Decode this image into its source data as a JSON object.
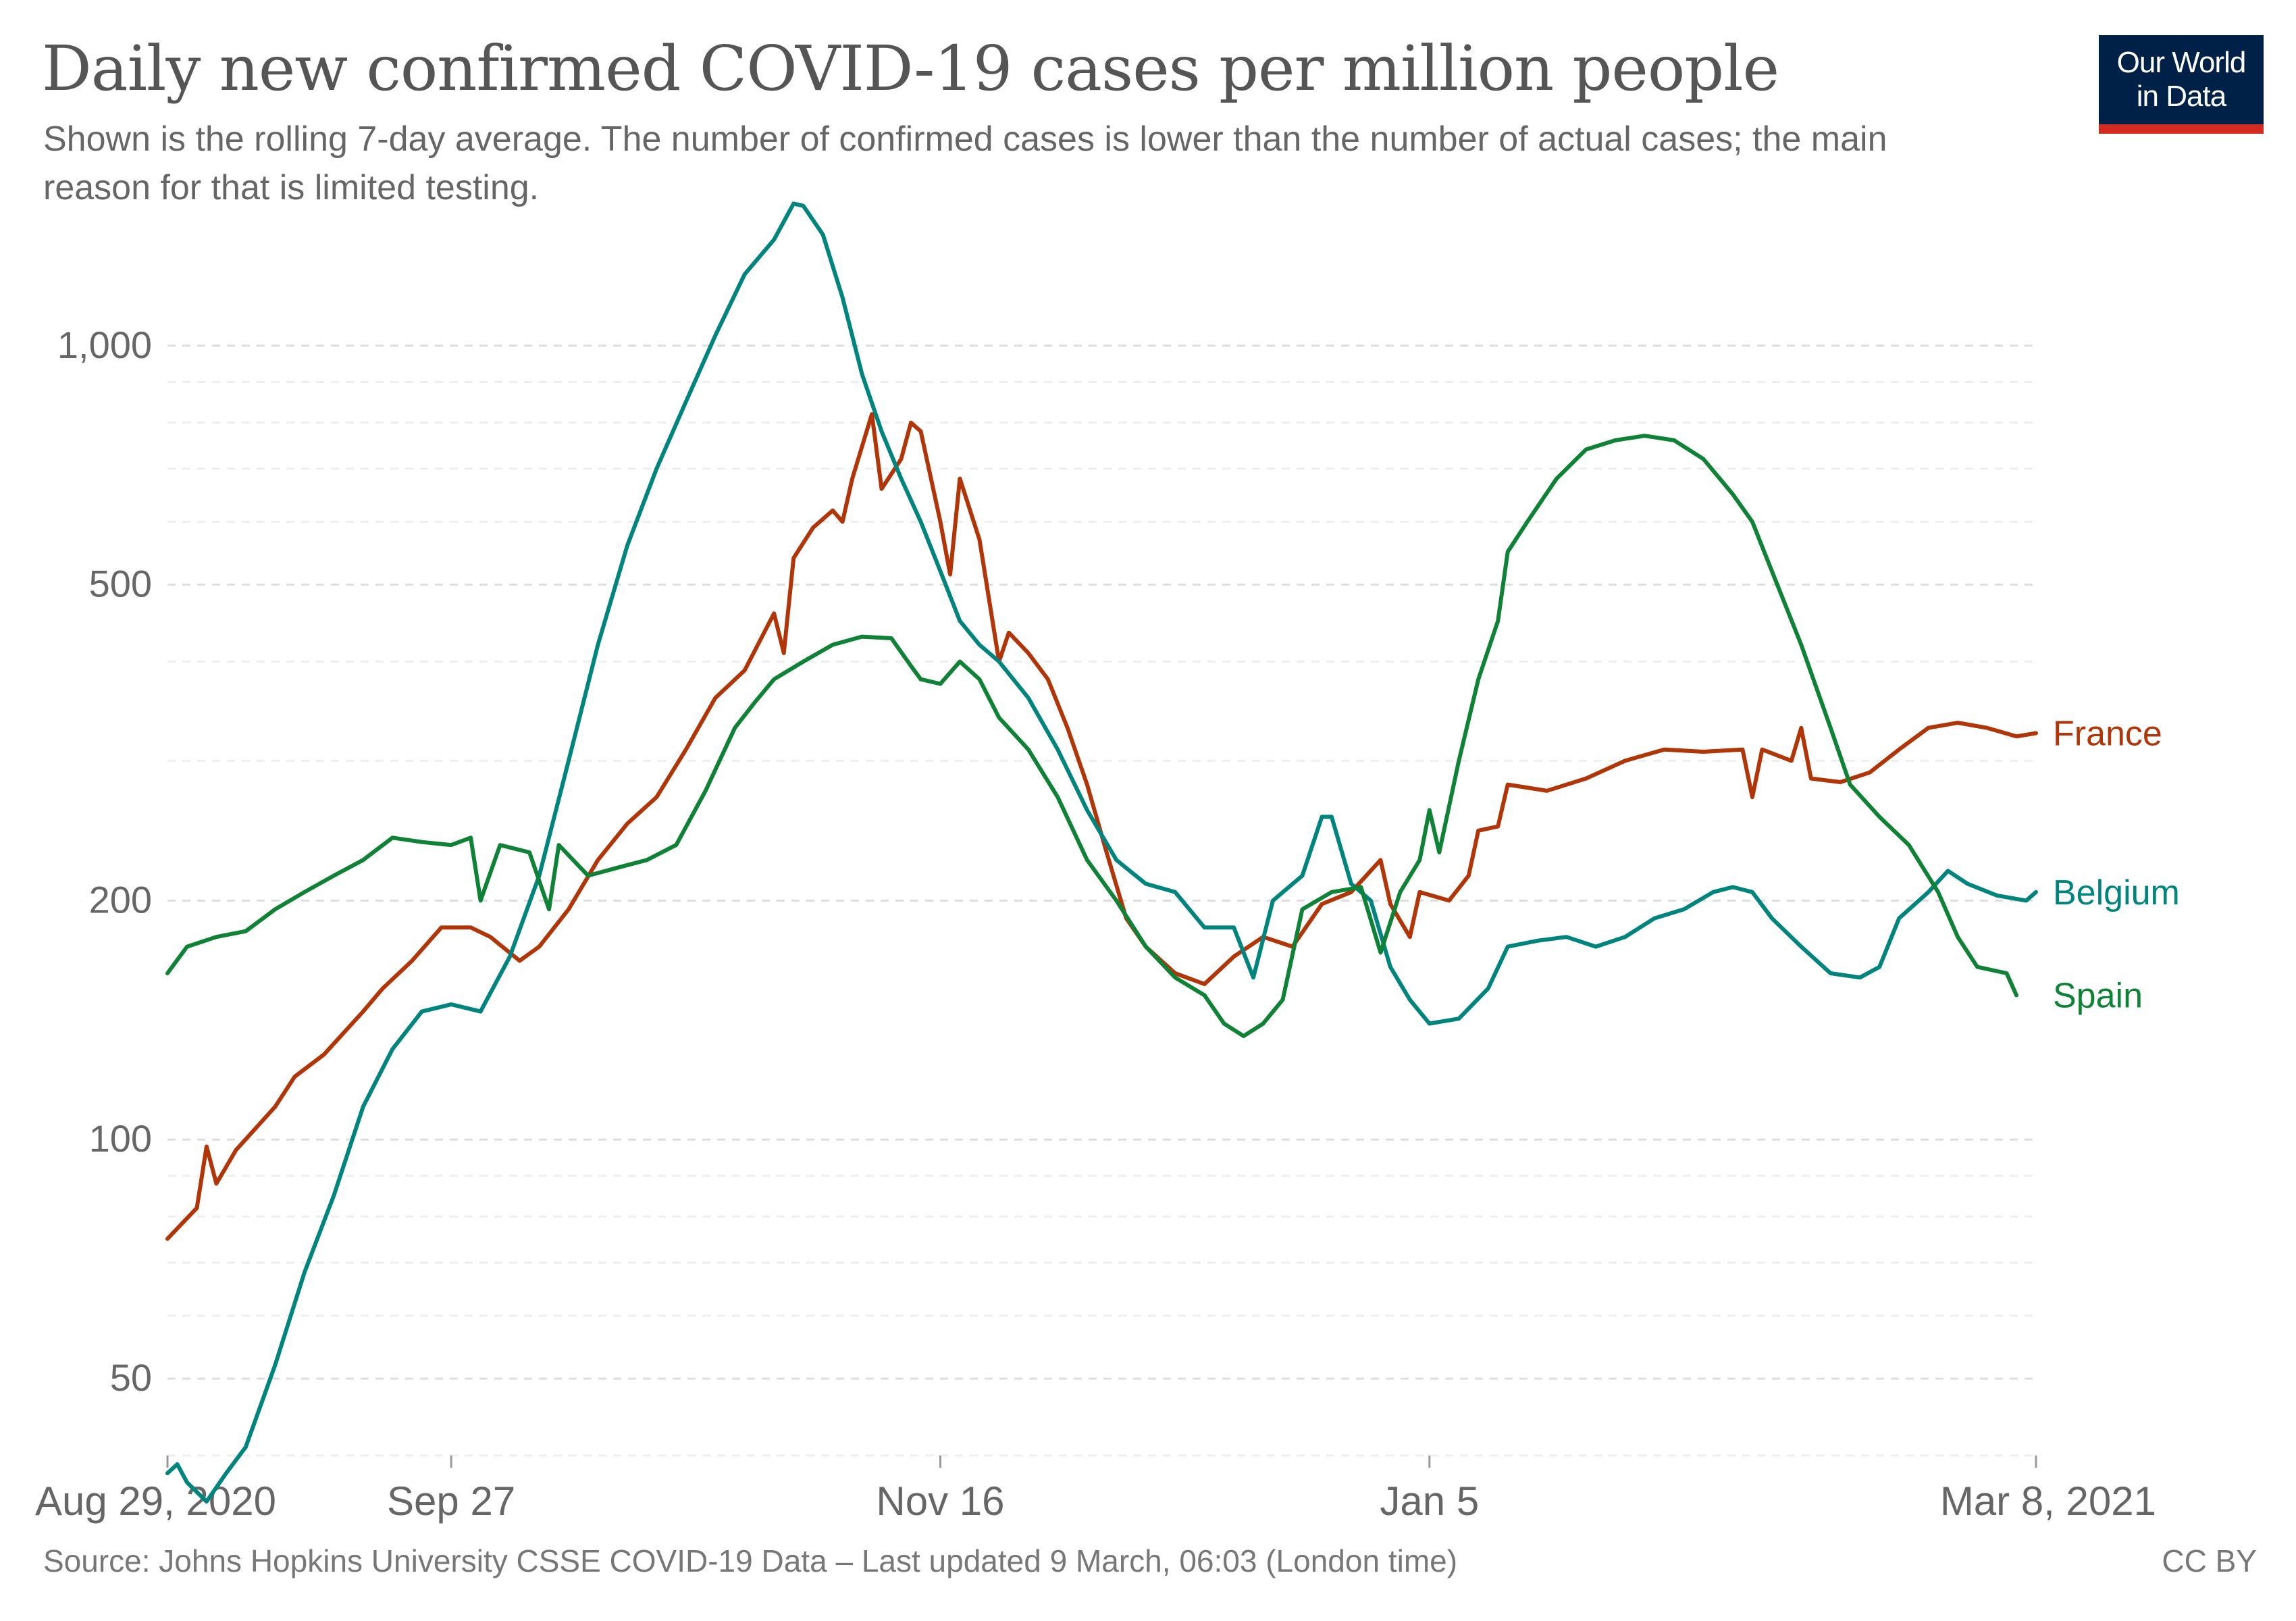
{
  "title": "Daily new confirmed COVID-19 cases per million people",
  "subtitle": "Shown is the rolling 7-day average. The number of confirmed cases is lower than the number of actual cases; the main reason for that is limited testing.",
  "logo": {
    "line1": "Our World",
    "line2": "in Data"
  },
  "footer": {
    "source": "Source: Johns Hopkins University CSSE COVID-19 Data – Last updated 9 March, 06:03 (London time)",
    "license": "CC BY"
  },
  "colors": {
    "france": "#b13507",
    "belgium": "#00847e",
    "spain": "#0e8235",
    "grid": "#dddddd",
    "text": "#666666"
  },
  "chart_data": {
    "type": "line",
    "scale": "log",
    "ylim": [
      40,
      1400
    ],
    "xlim": [
      "2020-08-29",
      "2021-03-08"
    ],
    "grid": true,
    "legend": "right (labels at line ends)",
    "y_ticks": [
      {
        "value": 50,
        "label": "50"
      },
      {
        "value": 100,
        "label": "100"
      },
      {
        "value": 200,
        "label": "200"
      },
      {
        "value": 500,
        "label": "500"
      },
      {
        "value": 1000,
        "label": "1,000"
      }
    ],
    "x_ticks": [
      {
        "date": "2020-08-29",
        "label": "Aug 29, 2020"
      },
      {
        "date": "2020-09-27",
        "label": "Sep 27"
      },
      {
        "date": "2020-11-16",
        "label": "Nov 16"
      },
      {
        "date": "2021-01-05",
        "label": "Jan 5"
      },
      {
        "date": "2021-03-08",
        "label": "Mar 8, 2021"
      }
    ],
    "series": [
      {
        "name": "France",
        "color": "#b13507",
        "points": [
          [
            "2020-08-29",
            75
          ],
          [
            "2020-09-01",
            82
          ],
          [
            "2020-09-02",
            98
          ],
          [
            "2020-09-03",
            88
          ],
          [
            "2020-09-05",
            97
          ],
          [
            "2020-09-09",
            110
          ],
          [
            "2020-09-11",
            120
          ],
          [
            "2020-09-14",
            128
          ],
          [
            "2020-09-18",
            145
          ],
          [
            "2020-09-20",
            155
          ],
          [
            "2020-09-23",
            168
          ],
          [
            "2020-09-26",
            185
          ],
          [
            "2020-09-29",
            185
          ],
          [
            "2020-10-01",
            180
          ],
          [
            "2020-10-04",
            168
          ],
          [
            "2020-10-06",
            175
          ],
          [
            "2020-10-09",
            195
          ],
          [
            "2020-10-12",
            225
          ],
          [
            "2020-10-15",
            250
          ],
          [
            "2020-10-18",
            270
          ],
          [
            "2020-10-21",
            310
          ],
          [
            "2020-10-24",
            360
          ],
          [
            "2020-10-27",
            390
          ],
          [
            "2020-10-30",
            460
          ],
          [
            "2020-10-31",
            410
          ],
          [
            "2020-11-01",
            540
          ],
          [
            "2020-11-03",
            590
          ],
          [
            "2020-11-05",
            620
          ],
          [
            "2020-11-06",
            600
          ],
          [
            "2020-11-07",
            680
          ],
          [
            "2020-11-09",
            820
          ],
          [
            "2020-11-10",
            660
          ],
          [
            "2020-11-12",
            720
          ],
          [
            "2020-11-13",
            800
          ],
          [
            "2020-11-14",
            780
          ],
          [
            "2020-11-16",
            600
          ],
          [
            "2020-11-17",
            515
          ],
          [
            "2020-11-18",
            680
          ],
          [
            "2020-11-20",
            570
          ],
          [
            "2020-11-22",
            400
          ],
          [
            "2020-11-23",
            435
          ],
          [
            "2020-11-25",
            410
          ],
          [
            "2020-11-27",
            380
          ],
          [
            "2020-11-29",
            330
          ],
          [
            "2020-12-01",
            280
          ],
          [
            "2020-12-03",
            230
          ],
          [
            "2020-12-05",
            190
          ],
          [
            "2020-12-07",
            175
          ],
          [
            "2020-12-10",
            162
          ],
          [
            "2020-12-13",
            157
          ],
          [
            "2020-12-16",
            170
          ],
          [
            "2020-12-19",
            180
          ],
          [
            "2020-12-22",
            175
          ],
          [
            "2020-12-25",
            198
          ],
          [
            "2020-12-28",
            205
          ],
          [
            "2020-12-31",
            225
          ],
          [
            "2021-01-01",
            198
          ],
          [
            "2021-01-03",
            180
          ],
          [
            "2021-01-04",
            205
          ],
          [
            "2021-01-07",
            200
          ],
          [
            "2021-01-09",
            215
          ],
          [
            "2021-01-10",
            245
          ],
          [
            "2021-01-12",
            248
          ],
          [
            "2021-01-13",
            280
          ],
          [
            "2021-01-17",
            275
          ],
          [
            "2021-01-21",
            285
          ],
          [
            "2021-01-25",
            300
          ],
          [
            "2021-01-29",
            310
          ],
          [
            "2021-02-02",
            308
          ],
          [
            "2021-02-06",
            310
          ],
          [
            "2021-02-07",
            270
          ],
          [
            "2021-02-08",
            310
          ],
          [
            "2021-02-11",
            300
          ],
          [
            "2021-02-12",
            330
          ],
          [
            "2021-02-13",
            285
          ],
          [
            "2021-02-16",
            282
          ],
          [
            "2021-02-19",
            290
          ],
          [
            "2021-02-22",
            310
          ],
          [
            "2021-02-25",
            330
          ],
          [
            "2021-02-28",
            335
          ],
          [
            "2021-03-03",
            330
          ],
          [
            "2021-03-06",
            322
          ],
          [
            "2021-03-08",
            325
          ]
        ]
      },
      {
        "name": "Belgium",
        "color": "#00847e",
        "points": [
          [
            "2020-08-29",
            38
          ],
          [
            "2020-08-30",
            39
          ],
          [
            "2020-08-31",
            37
          ],
          [
            "2020-09-02",
            35
          ],
          [
            "2020-09-04",
            38
          ],
          [
            "2020-09-06",
            41
          ],
          [
            "2020-09-09",
            52
          ],
          [
            "2020-09-12",
            68
          ],
          [
            "2020-09-15",
            85
          ],
          [
            "2020-09-18",
            110
          ],
          [
            "2020-09-21",
            130
          ],
          [
            "2020-09-24",
            145
          ],
          [
            "2020-09-27",
            148
          ],
          [
            "2020-09-30",
            145
          ],
          [
            "2020-10-03",
            170
          ],
          [
            "2020-10-06",
            215
          ],
          [
            "2020-10-09",
            300
          ],
          [
            "2020-10-12",
            420
          ],
          [
            "2020-10-15",
            560
          ],
          [
            "2020-10-18",
            700
          ],
          [
            "2020-10-21",
            850
          ],
          [
            "2020-10-24",
            1030
          ],
          [
            "2020-10-27",
            1230
          ],
          [
            "2020-10-30",
            1360
          ],
          [
            "2020-11-01",
            1510
          ],
          [
            "2020-11-02",
            1500
          ],
          [
            "2020-11-04",
            1380
          ],
          [
            "2020-11-06",
            1150
          ],
          [
            "2020-11-08",
            920
          ],
          [
            "2020-11-10",
            780
          ],
          [
            "2020-11-12",
            680
          ],
          [
            "2020-11-14",
            600
          ],
          [
            "2020-11-16",
            520
          ],
          [
            "2020-11-18",
            450
          ],
          [
            "2020-11-20",
            420
          ],
          [
            "2020-11-22",
            400
          ],
          [
            "2020-11-25",
            360
          ],
          [
            "2020-11-28",
            310
          ],
          [
            "2020-12-01",
            260
          ],
          [
            "2020-12-04",
            225
          ],
          [
            "2020-12-07",
            210
          ],
          [
            "2020-12-10",
            205
          ],
          [
            "2020-12-13",
            185
          ],
          [
            "2020-12-16",
            185
          ],
          [
            "2020-12-18",
            160
          ],
          [
            "2020-12-20",
            200
          ],
          [
            "2020-12-23",
            215
          ],
          [
            "2020-12-25",
            255
          ],
          [
            "2020-12-26",
            255
          ],
          [
            "2020-12-28",
            210
          ],
          [
            "2020-12-30",
            200
          ],
          [
            "2021-01-01",
            165
          ],
          [
            "2021-01-03",
            150
          ],
          [
            "2021-01-05",
            140
          ],
          [
            "2021-01-08",
            142
          ],
          [
            "2021-01-11",
            155
          ],
          [
            "2021-01-13",
            175
          ],
          [
            "2021-01-16",
            178
          ],
          [
            "2021-01-19",
            180
          ],
          [
            "2021-01-22",
            175
          ],
          [
            "2021-01-25",
            180
          ],
          [
            "2021-01-28",
            190
          ],
          [
            "2021-01-31",
            195
          ],
          [
            "2021-02-03",
            205
          ],
          [
            "2021-02-05",
            208
          ],
          [
            "2021-02-07",
            205
          ],
          [
            "2021-02-09",
            190
          ],
          [
            "2021-02-12",
            175
          ],
          [
            "2021-02-15",
            162
          ],
          [
            "2021-02-18",
            160
          ],
          [
            "2021-02-20",
            165
          ],
          [
            "2021-02-22",
            190
          ],
          [
            "2021-02-25",
            205
          ],
          [
            "2021-02-27",
            218
          ],
          [
            "2021-03-01",
            210
          ],
          [
            "2021-03-04",
            203
          ],
          [
            "2021-03-07",
            200
          ],
          [
            "2021-03-08",
            205
          ]
        ]
      },
      {
        "name": "Spain",
        "color": "#0e8235",
        "points": [
          [
            "2020-08-29",
            162
          ],
          [
            "2020-08-31",
            175
          ],
          [
            "2020-09-03",
            180
          ],
          [
            "2020-09-06",
            183
          ],
          [
            "2020-09-09",
            195
          ],
          [
            "2020-09-12",
            205
          ],
          [
            "2020-09-15",
            215
          ],
          [
            "2020-09-18",
            225
          ],
          [
            "2020-09-21",
            240
          ],
          [
            "2020-09-24",
            237
          ],
          [
            "2020-09-27",
            235
          ],
          [
            "2020-09-29",
            240
          ],
          [
            "2020-09-30",
            200
          ],
          [
            "2020-10-02",
            235
          ],
          [
            "2020-10-05",
            230
          ],
          [
            "2020-10-07",
            195
          ],
          [
            "2020-10-08",
            235
          ],
          [
            "2020-10-11",
            215
          ],
          [
            "2020-10-14",
            220
          ],
          [
            "2020-10-17",
            225
          ],
          [
            "2020-10-20",
            235
          ],
          [
            "2020-10-23",
            275
          ],
          [
            "2020-10-26",
            330
          ],
          [
            "2020-10-28",
            355
          ],
          [
            "2020-10-30",
            380
          ],
          [
            "2020-11-02",
            400
          ],
          [
            "2020-11-05",
            420
          ],
          [
            "2020-11-08",
            430
          ],
          [
            "2020-11-11",
            428
          ],
          [
            "2020-11-13",
            395
          ],
          [
            "2020-11-14",
            380
          ],
          [
            "2020-11-16",
            375
          ],
          [
            "2020-11-18",
            400
          ],
          [
            "2020-11-20",
            380
          ],
          [
            "2020-11-22",
            340
          ],
          [
            "2020-11-25",
            310
          ],
          [
            "2020-11-28",
            270
          ],
          [
            "2020-12-01",
            225
          ],
          [
            "2020-12-04",
            200
          ],
          [
            "2020-12-07",
            175
          ],
          [
            "2020-12-10",
            160
          ],
          [
            "2020-12-13",
            152
          ],
          [
            "2020-12-15",
            140
          ],
          [
            "2020-12-17",
            135
          ],
          [
            "2020-12-19",
            140
          ],
          [
            "2020-12-21",
            150
          ],
          [
            "2020-12-23",
            195
          ],
          [
            "2020-12-26",
            205
          ],
          [
            "2020-12-29",
            208
          ],
          [
            "2020-12-31",
            172
          ],
          [
            "2021-01-02",
            205
          ],
          [
            "2021-01-04",
            225
          ],
          [
            "2021-01-05",
            260
          ],
          [
            "2021-01-06",
            230
          ],
          [
            "2021-01-08",
            300
          ],
          [
            "2021-01-10",
            380
          ],
          [
            "2021-01-12",
            450
          ],
          [
            "2021-01-13",
            550
          ],
          [
            "2021-01-15",
            600
          ],
          [
            "2021-01-18",
            680
          ],
          [
            "2021-01-21",
            740
          ],
          [
            "2021-01-24",
            760
          ],
          [
            "2021-01-27",
            770
          ],
          [
            "2021-01-30",
            760
          ],
          [
            "2021-02-02",
            720
          ],
          [
            "2021-02-05",
            650
          ],
          [
            "2021-02-07",
            600
          ],
          [
            "2021-02-09",
            520
          ],
          [
            "2021-02-12",
            420
          ],
          [
            "2021-02-15",
            330
          ],
          [
            "2021-02-17",
            280
          ],
          [
            "2021-02-20",
            255
          ],
          [
            "2021-02-23",
            235
          ],
          [
            "2021-02-26",
            205
          ],
          [
            "2021-02-28",
            180
          ],
          [
            "2021-03-02",
            165
          ],
          [
            "2021-03-05",
            162
          ],
          [
            "2021-03-06",
            152
          ]
        ]
      }
    ]
  }
}
